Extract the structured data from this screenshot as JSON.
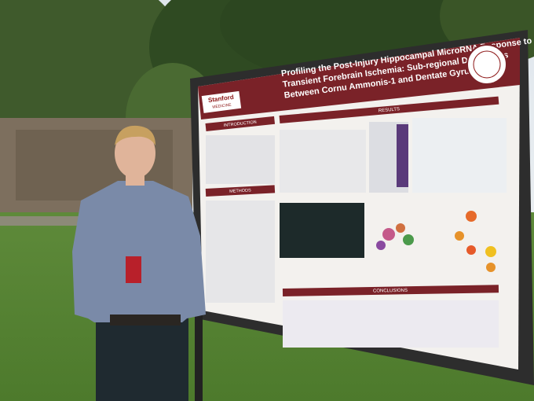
{
  "poster": {
    "title_lines": [
      "Profiling the Post-Injury Hippocampal MicroRNA Response to",
      "Transient Forebrain Ischemia: Sub-regional Differences",
      "Between Cornu Ammonis-1 and Dentate Gyrus"
    ],
    "logo": {
      "name": "Stanford",
      "sub": "MEDICINE"
    },
    "sections": {
      "introduction": "INTRODUCTION",
      "methods": "METHODS",
      "results": "RESULTS",
      "conclusions": "CONCLUSIONS"
    }
  }
}
